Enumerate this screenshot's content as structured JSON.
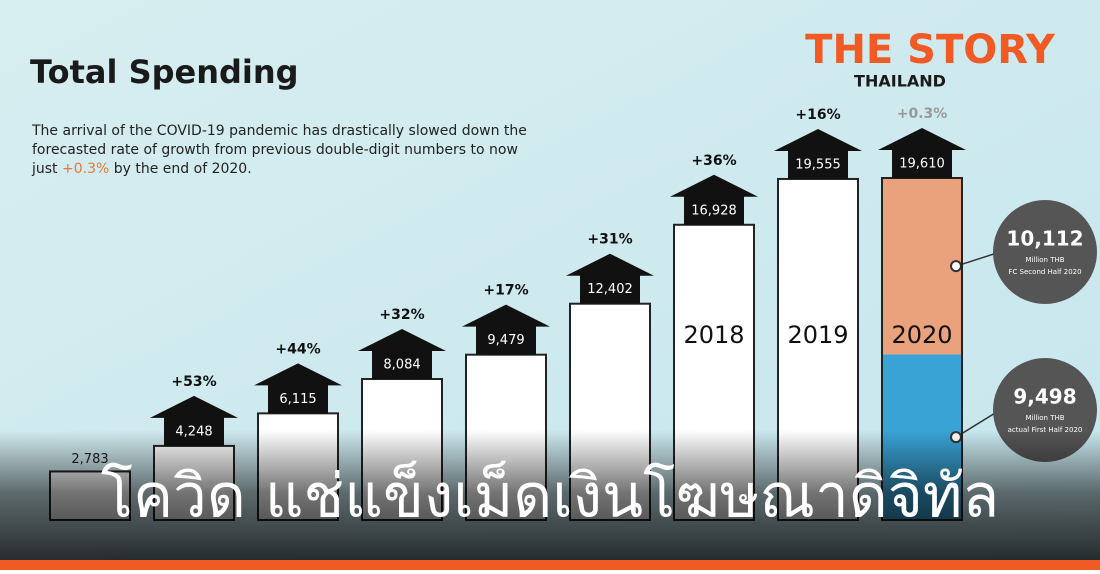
{
  "logo": {
    "name": "THE STORY",
    "sub": "THAILAND"
  },
  "headline": "โควิด แช่แข็งเม็ดเงินโฆษณาดิจิทัล",
  "chart_data": {
    "type": "bar",
    "title": "Total Spending",
    "description": [
      "The arrival of the COVID-19 pandemic has drastically slowed down the forecasted rate of growth from previous double-digit numbers to now just ",
      "+0.3%",
      " by the end of 2020."
    ],
    "categories": [
      null,
      null,
      null,
      null,
      null,
      null,
      "2018",
      "2019",
      "2020"
    ],
    "values": [
      2783,
      4248,
      6115,
      8084,
      9479,
      12402,
      16928,
      19555,
      19610
    ],
    "value_labels": [
      "2,783",
      "4,248",
      "6,115",
      "8,084",
      "9,479",
      "12,402",
      "16,928",
      "19,555",
      "19,610"
    ],
    "growth_labels": [
      null,
      "+53%",
      "+44%",
      "+32%",
      "+17%",
      "+31%",
      "+36%",
      "+16%",
      "+0.3%"
    ],
    "color": "#ffffff",
    "split": [
      {
        "value": 9498,
        "label": "9,498",
        "unit": "Million THB",
        "note": "actual First Half 2020",
        "color": "#3aa3d6"
      },
      {
        "value": 10112,
        "label": "10,112",
        "unit": "Million THB",
        "note": "FC Second Half 2020",
        "color": "#e9a27c"
      }
    ]
  }
}
